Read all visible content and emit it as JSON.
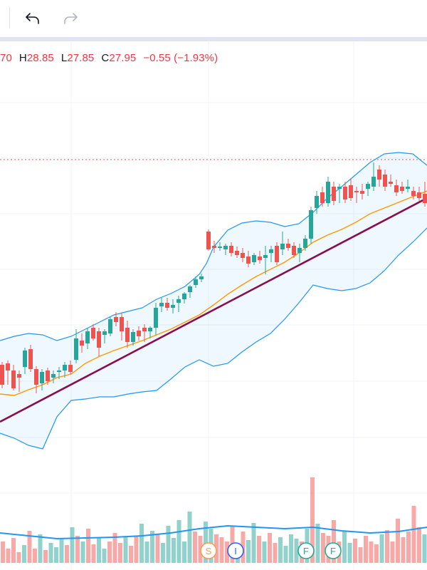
{
  "toolbar": {
    "undo_icon": "undo-arrow-icon",
    "redo_icon": "redo-arrow-icon"
  },
  "legend": {
    "open_value": "70",
    "high_label": "H",
    "high_value": "28.85",
    "low_label": "L",
    "low_value": "27.85",
    "close_label": "C",
    "close_value": "27.95",
    "change": "−0.55",
    "change_pct": "(−1.93%)"
  },
  "event_markers": [
    {
      "letter": "S",
      "color": "#ff9850"
    },
    {
      "letter": "I",
      "color": "#2962ff"
    },
    {
      "letter": "F",
      "color": "#22ab94"
    },
    {
      "letter": "F",
      "color": "#22ab94"
    }
  ],
  "colors": {
    "up": "#26a69a",
    "down": "#ef5350",
    "band": "#2196f3",
    "basis": "#ff9800",
    "trendline": "#880e4f",
    "volume_ma": "#2196f3",
    "price_line": "#ef5350"
  }
}
